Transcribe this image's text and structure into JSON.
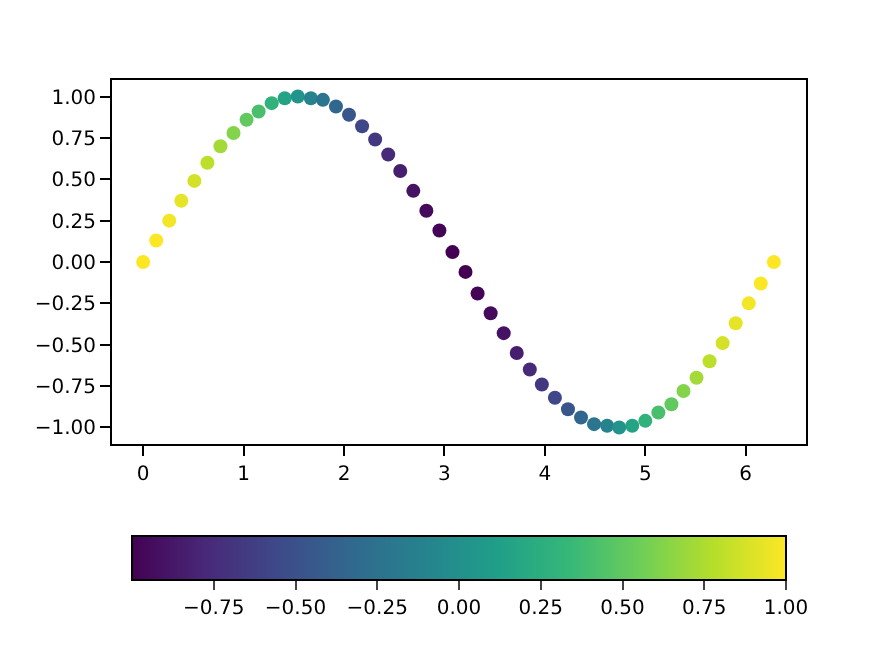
{
  "chart_data": {
    "type": "scatter",
    "marker": "circle",
    "x": [
      0.0,
      0.13,
      0.26,
      0.38,
      0.51,
      0.64,
      0.77,
      0.9,
      1.03,
      1.15,
      1.28,
      1.41,
      1.54,
      1.67,
      1.79,
      1.92,
      2.05,
      2.18,
      2.31,
      2.44,
      2.56,
      2.69,
      2.82,
      2.95,
      3.08,
      3.21,
      3.33,
      3.46,
      3.59,
      3.72,
      3.85,
      3.97,
      4.1,
      4.23,
      4.36,
      4.49,
      4.62,
      4.74,
      4.87,
      5.0,
      5.13,
      5.26,
      5.38,
      5.51,
      5.64,
      5.77,
      5.9,
      6.03,
      6.15,
      6.28
    ],
    "values": [
      0.0,
      0.13,
      0.25,
      0.37,
      0.49,
      0.6,
      0.7,
      0.78,
      0.86,
      0.91,
      0.96,
      0.99,
      1.0,
      0.99,
      0.98,
      0.94,
      0.89,
      0.82,
      0.74,
      0.65,
      0.55,
      0.43,
      0.31,
      0.19,
      0.06,
      -0.06,
      -0.19,
      -0.31,
      -0.43,
      -0.55,
      -0.65,
      -0.74,
      -0.82,
      -0.89,
      -0.94,
      -0.98,
      -0.99,
      -1.0,
      -0.99,
      -0.96,
      -0.91,
      -0.86,
      -0.78,
      -0.7,
      -0.6,
      -0.49,
      -0.37,
      -0.25,
      -0.13,
      0.0
    ],
    "cvalues": [
      1.0,
      0.99,
      0.97,
      0.93,
      0.87,
      0.8,
      0.72,
      0.62,
      0.51,
      0.41,
      0.29,
      0.16,
      0.03,
      -0.1,
      -0.22,
      -0.34,
      -0.46,
      -0.57,
      -0.67,
      -0.76,
      -0.84,
      -0.9,
      -0.95,
      -0.98,
      -1.0,
      -1.0,
      -0.98,
      -0.95,
      -0.9,
      -0.84,
      -0.76,
      -0.67,
      -0.57,
      -0.46,
      -0.34,
      -0.22,
      -0.1,
      0.03,
      0.16,
      0.29,
      0.41,
      0.51,
      0.62,
      0.72,
      0.8,
      0.87,
      0.93,
      0.97,
      0.99,
      1.0
    ],
    "xlim": [
      -0.31,
      6.6
    ],
    "xticks": [
      0,
      1,
      2,
      3,
      4,
      5,
      6
    ],
    "ylim": [
      -1.1,
      1.1
    ],
    "yticks": [
      {
        "value": -1.0,
        "label": "−1.00"
      },
      {
        "value": -0.75,
        "label": "−0.75"
      },
      {
        "value": -0.5,
        "label": "−0.50"
      },
      {
        "value": -0.25,
        "label": "−0.25"
      },
      {
        "value": 0,
        "label": "0.00"
      },
      {
        "value": 0.25,
        "label": "0.25"
      },
      {
        "value": 0.5,
        "label": "0.50"
      },
      {
        "value": 0.75,
        "label": "0.75"
      },
      {
        "value": 1.0,
        "label": "1.00"
      }
    ],
    "clim": [
      -1,
      1
    ],
    "cticks": [
      {
        "value": -0.75,
        "label": "−0.75"
      },
      {
        "value": -0.5,
        "label": "−0.50"
      },
      {
        "value": -0.25,
        "label": "−0.25"
      },
      {
        "value": 0,
        "label": "0.00"
      },
      {
        "value": 0.25,
        "label": "0.25"
      },
      {
        "value": 0.5,
        "label": "0.50"
      },
      {
        "value": 0.75,
        "label": "0.75"
      },
      {
        "value": 1.0,
        "label": "1.00"
      }
    ]
  }
}
